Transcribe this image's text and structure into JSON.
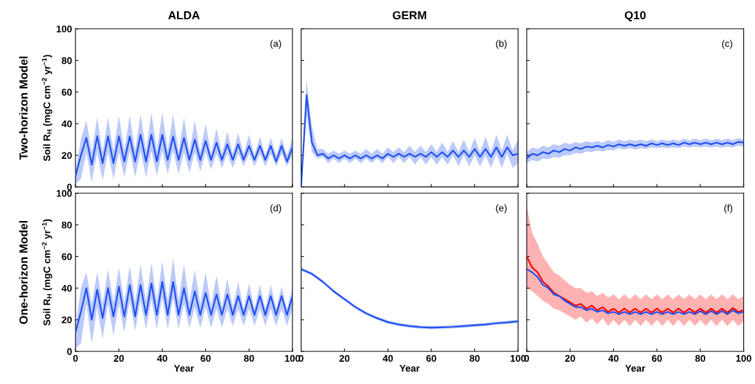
{
  "chart_data": [
    {
      "type": "line",
      "title": "ALDA",
      "ylabel": "Soil R$_{H}$ (mgC cm$^{−2}$ yr$^{−1}$)",
      "annotations": [
        "(a)",
        "Two-horizon Model"
      ],
      "xlim": [
        0,
        100
      ],
      "ylim": [
        0,
        100
      ],
      "xticks": [
        0,
        20,
        40,
        60,
        80,
        100
      ],
      "yticks": [
        0,
        20,
        40,
        60,
        80,
        100
      ],
      "tick_labels": "y",
      "grid": false,
      "legend": false,
      "x": [
        0,
        2.5,
        5,
        7.5,
        10,
        12.5,
        15,
        17.5,
        20,
        22.5,
        25,
        27.5,
        30,
        32.5,
        35,
        37.5,
        40,
        42.5,
        45,
        47.5,
        50,
        52.5,
        55,
        57.5,
        60,
        62.5,
        65,
        67.5,
        70,
        72.5,
        75,
        77.5,
        80,
        82.5,
        85,
        87.5,
        90,
        92.5,
        95,
        97.5,
        100
      ],
      "series": [
        {
          "color": "#1f4ff0",
          "values": [
            7,
            20,
            31,
            14,
            32,
            15,
            32,
            15,
            32,
            16,
            32,
            16,
            33,
            16,
            33,
            16,
            33,
            17,
            32,
            17,
            31,
            17,
            30,
            17,
            29,
            17,
            28,
            17,
            27,
            17,
            27,
            17,
            26,
            17,
            26,
            17,
            26,
            16,
            26,
            16,
            25
          ],
          "upper": [
            10,
            30,
            42,
            22,
            44,
            22,
            44,
            23,
            45,
            23,
            45,
            23,
            46,
            23,
            47,
            23,
            47,
            23,
            46,
            22,
            44,
            22,
            42,
            22,
            40,
            21,
            37,
            21,
            35,
            21,
            34,
            21,
            33,
            20,
            32,
            20,
            31,
            20,
            31,
            20,
            31
          ],
          "lower": [
            2,
            5,
            22,
            3,
            22,
            4,
            22,
            5,
            22,
            6,
            23,
            6,
            23,
            6,
            23,
            7,
            23,
            8,
            23,
            8,
            22,
            9,
            22,
            10,
            22,
            11,
            21,
            12,
            21,
            12,
            21,
            13,
            21,
            13,
            21,
            13,
            21,
            13,
            21,
            13,
            20
          ]
        }
      ]
    },
    {
      "type": "line",
      "title": "GERM",
      "annotations": [
        "(b)"
      ],
      "xlim": [
        0,
        100
      ],
      "ylim": [
        0,
        100
      ],
      "xticks": [
        0,
        20,
        40,
        60,
        80,
        100
      ],
      "yticks": [
        0,
        20,
        40,
        60,
        80,
        100
      ],
      "tick_labels": false,
      "grid": false,
      "legend": false,
      "x": [
        0,
        2.5,
        5,
        7.5,
        10,
        12.5,
        15,
        17.5,
        20,
        22.5,
        25,
        27.5,
        30,
        32.5,
        35,
        37.5,
        40,
        42.5,
        45,
        47.5,
        50,
        52.5,
        55,
        57.5,
        60,
        62.5,
        65,
        67.5,
        70,
        72.5,
        75,
        77.5,
        80,
        82.5,
        85,
        87.5,
        90,
        92.5,
        95,
        97.5,
        100
      ],
      "series": [
        {
          "color": "#1f4ff0",
          "values": [
            0,
            58,
            28,
            20,
            21,
            18,
            20,
            18,
            20,
            18,
            20,
            18,
            20,
            18,
            20,
            18,
            21,
            19,
            21,
            19,
            21,
            19,
            21,
            19,
            22,
            19,
            22,
            19,
            23,
            19,
            23,
            19,
            24,
            19,
            24,
            19,
            25,
            19,
            25,
            20,
            21
          ],
          "upper": [
            5,
            68,
            38,
            24,
            24,
            21,
            23,
            21,
            23,
            21,
            23,
            21,
            24,
            21,
            24,
            21,
            25,
            22,
            25,
            22,
            26,
            22,
            26,
            22,
            27,
            22,
            28,
            22,
            29,
            22,
            30,
            22,
            31,
            22,
            32,
            22,
            33,
            23,
            33,
            23,
            30
          ],
          "lower": [
            0,
            45,
            22,
            18,
            19,
            15,
            18,
            15,
            18,
            15,
            18,
            15,
            18,
            15,
            18,
            15,
            19,
            15,
            19,
            15,
            19,
            14,
            19,
            14,
            19,
            14,
            19,
            14,
            20,
            13,
            20,
            13,
            20,
            13,
            20,
            12,
            21,
            12,
            21,
            12,
            15
          ]
        }
      ]
    },
    {
      "type": "line",
      "title": "Q10",
      "annotations": [
        "(c)"
      ],
      "xlim": [
        0,
        100
      ],
      "ylim": [
        0,
        100
      ],
      "xticks": [
        0,
        20,
        40,
        60,
        80,
        100
      ],
      "yticks": [
        0,
        20,
        40,
        60,
        80,
        100
      ],
      "tick_labels": false,
      "grid": false,
      "legend": false,
      "x": [
        0,
        2.5,
        5,
        7.5,
        10,
        12.5,
        15,
        17.5,
        20,
        22.5,
        25,
        27.5,
        30,
        32.5,
        35,
        37.5,
        40,
        42.5,
        45,
        47.5,
        50,
        52.5,
        55,
        57.5,
        60,
        62.5,
        65,
        67.5,
        70,
        72.5,
        75,
        77.5,
        80,
        82.5,
        85,
        87.5,
        90,
        92.5,
        95,
        97.5,
        100
      ],
      "series": [
        {
          "color": "#1f4ff0",
          "values": [
            18,
            21,
            20,
            22,
            21,
            23,
            22,
            24,
            23,
            25,
            24,
            25.5,
            25,
            26,
            25,
            26.5,
            25.5,
            27,
            26,
            27,
            26,
            27,
            26,
            27.5,
            26.5,
            27.5,
            26.5,
            27.5,
            26.5,
            28,
            27,
            28,
            27,
            28,
            27,
            28,
            27,
            28,
            27,
            28.5,
            28
          ],
          "upper": [
            22,
            25,
            24,
            26,
            25,
            27,
            26,
            28,
            27,
            28.5,
            27.5,
            29,
            28,
            29,
            28,
            29.5,
            28.5,
            30,
            29,
            30,
            29,
            30,
            29,
            30,
            29,
            30,
            29,
            30,
            29,
            30.5,
            29.5,
            30.5,
            29.5,
            30.5,
            29.5,
            30.5,
            29.5,
            30.5,
            29.5,
            31,
            30
          ],
          "lower": [
            15,
            17,
            16,
            18,
            17.5,
            19,
            18.5,
            20,
            20,
            21.5,
            21,
            22.5,
            22,
            23,
            22.5,
            23.5,
            23,
            24.5,
            23.5,
            24.5,
            23.5,
            24.5,
            24,
            25,
            24.5,
            25,
            24.5,
            25,
            24.5,
            25.5,
            25,
            25.5,
            25,
            25.5,
            25,
            25.5,
            25,
            25.5,
            25,
            26,
            25.5
          ]
        }
      ]
    },
    {
      "type": "line",
      "xlabel": "Year",
      "ylabel": "Soil R$_{H}$ (mgC cm$^{−2}$ yr$^{−1}$)",
      "annotations": [
        "(d)",
        "One-horizon Model"
      ],
      "xlim": [
        0,
        100
      ],
      "ylim": [
        0,
        100
      ],
      "xticks": [
        0,
        20,
        40,
        60,
        80,
        100
      ],
      "yticks": [
        0,
        20,
        40,
        60,
        80,
        100
      ],
      "grid": false,
      "legend": false,
      "x": [
        0,
        2.5,
        5,
        7.5,
        10,
        12.5,
        15,
        17.5,
        20,
        22.5,
        25,
        27.5,
        30,
        32.5,
        35,
        37.5,
        40,
        42.5,
        45,
        47.5,
        50,
        52.5,
        55,
        57.5,
        60,
        62.5,
        65,
        67.5,
        70,
        72.5,
        75,
        77.5,
        80,
        82.5,
        85,
        87.5,
        90,
        92.5,
        95,
        97.5,
        100
      ],
      "series": [
        {
          "color": "#1f4ff0",
          "values": [
            12,
            25,
            40,
            20,
            39,
            21,
            40,
            22,
            41,
            22,
            42,
            22,
            42,
            23,
            43,
            23,
            44,
            23,
            44,
            23,
            40,
            23,
            38,
            23,
            37,
            23,
            36,
            23,
            36,
            23,
            35,
            23,
            35,
            23,
            35,
            23,
            35,
            23,
            35,
            23,
            35
          ],
          "upper": [
            15,
            40,
            50,
            30,
            50,
            30,
            52,
            31,
            53,
            31,
            54,
            31,
            55,
            32,
            56,
            32,
            57,
            32,
            59,
            32,
            55,
            31,
            52,
            30,
            50,
            29,
            48,
            28,
            46,
            28,
            44,
            27,
            43,
            27,
            42,
            27,
            42,
            27,
            41,
            27,
            40
          ],
          "lower": [
            2,
            5,
            30,
            5,
            28,
            8,
            30,
            10,
            30,
            12,
            32,
            13,
            32,
            14,
            33,
            14,
            34,
            14,
            34,
            14,
            30,
            15,
            28,
            15,
            28,
            15,
            27,
            15,
            27,
            16,
            27,
            16,
            27,
            16,
            27,
            16,
            27,
            16,
            27,
            16,
            27
          ]
        }
      ]
    },
    {
      "type": "line",
      "xlabel": "Year",
      "annotations": [
        "(e)"
      ],
      "xlim": [
        0,
        100
      ],
      "ylim": [
        0,
        100
      ],
      "xticks": [
        0,
        20,
        40,
        60,
        80,
        100
      ],
      "yticks": [
        0,
        20,
        40,
        60,
        80,
        100
      ],
      "tick_labels": "x",
      "grid": false,
      "legend": false,
      "x": [
        0,
        5,
        10,
        15,
        20,
        25,
        30,
        35,
        40,
        45,
        50,
        55,
        60,
        65,
        70,
        75,
        80,
        85,
        90,
        95,
        100
      ],
      "series": [
        {
          "color": "#1f4ff0",
          "values": [
            52,
            49,
            44,
            38,
            33,
            28,
            24,
            21,
            18.5,
            17,
            16,
            15.3,
            15,
            15.2,
            15.5,
            16,
            16.5,
            17,
            17.8,
            18.3,
            19
          ],
          "upper": [
            53,
            50,
            45,
            39,
            34,
            29,
            25,
            22,
            19.5,
            18,
            17,
            16.3,
            16,
            16.2,
            16.5,
            17,
            17.5,
            18,
            18.8,
            19.3,
            20
          ],
          "lower": [
            51,
            48,
            43,
            37,
            32,
            27,
            23,
            20,
            17.5,
            16,
            15,
            14.3,
            14,
            14.2,
            14.5,
            15,
            15.5,
            16,
            16.8,
            17.3,
            18
          ]
        }
      ]
    },
    {
      "type": "line",
      "xlabel": "Year",
      "annotations": [
        "(f)"
      ],
      "xlim": [
        0,
        100
      ],
      "ylim": [
        0,
        100
      ],
      "xticks": [
        0,
        20,
        40,
        60,
        80,
        100
      ],
      "yticks": [
        0,
        20,
        40,
        60,
        80,
        100
      ],
      "tick_labels": "x",
      "grid": false,
      "legend": false,
      "x": [
        0,
        2.5,
        5,
        7.5,
        10,
        12.5,
        15,
        17.5,
        20,
        22.5,
        25,
        27.5,
        30,
        32.5,
        35,
        37.5,
        40,
        42.5,
        45,
        47.5,
        50,
        52.5,
        55,
        57.5,
        60,
        62.5,
        65,
        67.5,
        70,
        72.5,
        75,
        77.5,
        80,
        82.5,
        85,
        87.5,
        90,
        92.5,
        95,
        97.5,
        100
      ],
      "series": [
        {
          "color": "#ff0000",
          "values": [
            60,
            53,
            50,
            44,
            41,
            37,
            35,
            33,
            31,
            29,
            30,
            27,
            29,
            26,
            28,
            25,
            27,
            24.5,
            27,
            24.5,
            27,
            24.5,
            27,
            24.5,
            27,
            24.5,
            27,
            24.5,
            27,
            24.5,
            27,
            24.5,
            27,
            24.5,
            27,
            24.5,
            27,
            24.5,
            27.5,
            25,
            26
          ],
          "upper": [
            92,
            75,
            68,
            60,
            55,
            50,
            48,
            45,
            42,
            40,
            40,
            37,
            38,
            35,
            37,
            34,
            36,
            33,
            36,
            33,
            36,
            33,
            36,
            33,
            36,
            33,
            36,
            33,
            36,
            33,
            36,
            33,
            36,
            33,
            36,
            33,
            36,
            33,
            36,
            33,
            35
          ],
          "lower": [
            40,
            38,
            35,
            32,
            30,
            27,
            26,
            24,
            22,
            20,
            22,
            18,
            21,
            17,
            21,
            16,
            20,
            16,
            20,
            16,
            20,
            16,
            20,
            16,
            20,
            16,
            20,
            16,
            20,
            16,
            20,
            16,
            20,
            16,
            20,
            16,
            20,
            16,
            20,
            16,
            19
          ]
        },
        {
          "color": "#1f4ff0",
          "values": [
            52,
            50,
            47,
            42,
            40,
            36,
            35,
            32,
            30,
            28,
            28,
            26,
            27,
            25,
            26,
            24,
            25,
            23.5,
            25,
            23.5,
            25,
            23.5,
            25,
            23.5,
            25,
            23.5,
            25,
            23.5,
            25,
            23.5,
            25,
            23.5,
            25.5,
            23.5,
            25.5,
            23.5,
            25.5,
            23.5,
            26,
            24,
            25
          ]
        }
      ]
    }
  ]
}
